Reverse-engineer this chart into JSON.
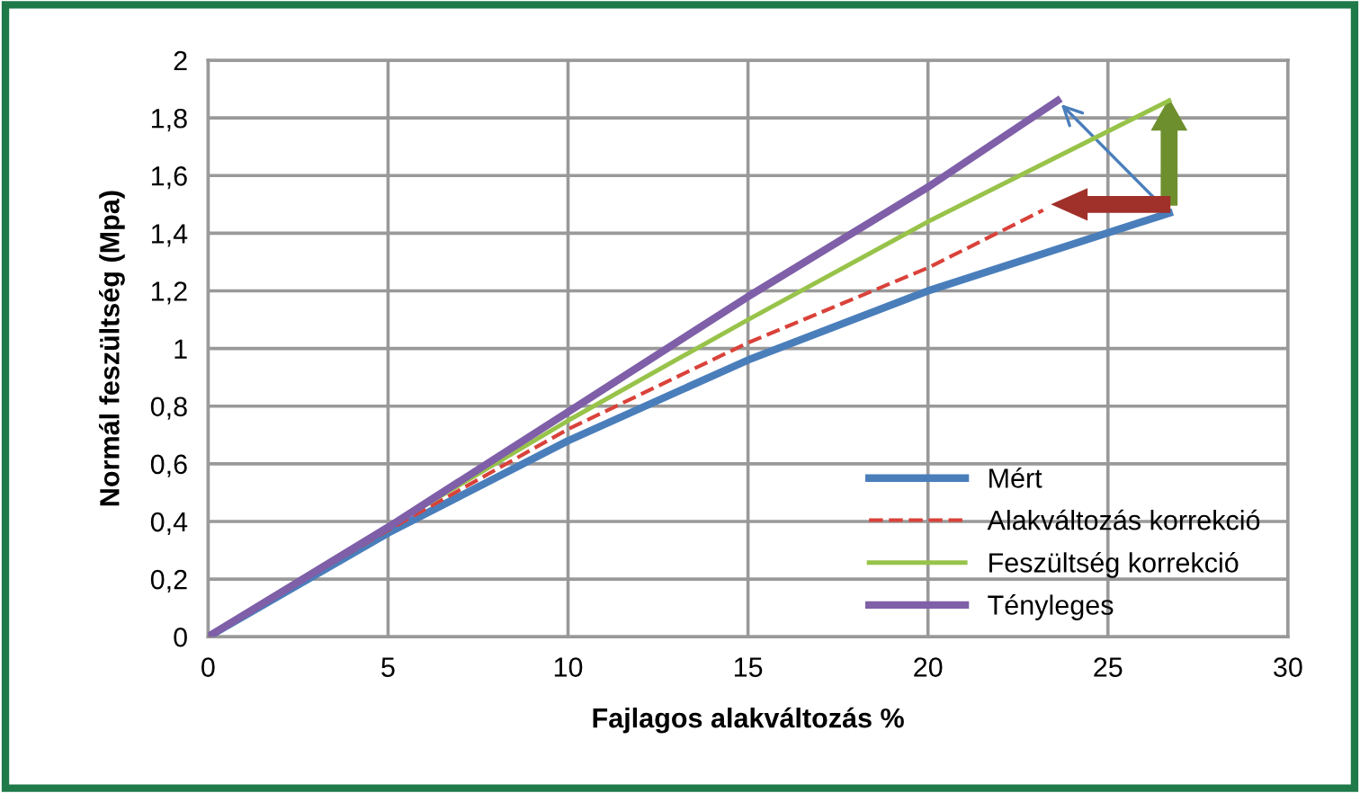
{
  "chart_data": {
    "type": "line",
    "xlabel": "Fajlagos alakváltozás %",
    "ylabel": "Normál feszültség (Mpa)",
    "xlim": [
      0,
      30
    ],
    "xticks": [
      0,
      5,
      10,
      15,
      20,
      25,
      30
    ],
    "ylim": [
      0,
      2
    ],
    "yticks": [
      0,
      {
        "value": 0.2,
        "label": "0,2"
      },
      {
        "value": 0.4,
        "label": "0,4"
      },
      {
        "value": 0.6,
        "label": "0,6"
      },
      {
        "value": 0.8,
        "label": "0,8"
      },
      1,
      {
        "value": 1.2,
        "label": "1,2"
      },
      {
        "value": 1.4,
        "label": "1,4"
      },
      {
        "value": 1.6,
        "label": "1,6"
      },
      {
        "value": 1.8,
        "label": "1,8"
      },
      2
    ],
    "grid": true,
    "legend": "bottom right",
    "marker": "none",
    "series": [
      {
        "name": "Mért",
        "color": "#4a7ebb",
        "x": [
          0,
          5,
          10,
          15,
          20,
          26.7
        ],
        "values": [
          0,
          0.36,
          0.68,
          0.96,
          1.2,
          1.47
        ]
      },
      {
        "name": "Alakváltozás korrekció",
        "color": "#d9423a",
        "line_style": "dashed",
        "x": [
          0,
          5,
          10,
          15,
          20,
          23.2
        ],
        "values": [
          0,
          0.37,
          0.72,
          1.02,
          1.28,
          1.48
        ]
      },
      {
        "name": "Feszültség korrekció",
        "color": "#98c34a",
        "x": [
          0,
          5,
          10,
          15,
          20,
          26.7
        ],
        "values": [
          0,
          0.38,
          0.75,
          1.1,
          1.44,
          1.86
        ]
      },
      {
        "name": "Tényleges",
        "color": "#7f5fa8",
        "x": [
          0,
          5,
          10,
          15,
          20,
          23.6
        ],
        "values": [
          0,
          0.38,
          0.78,
          1.18,
          1.56,
          1.86
        ]
      }
    ]
  }
}
